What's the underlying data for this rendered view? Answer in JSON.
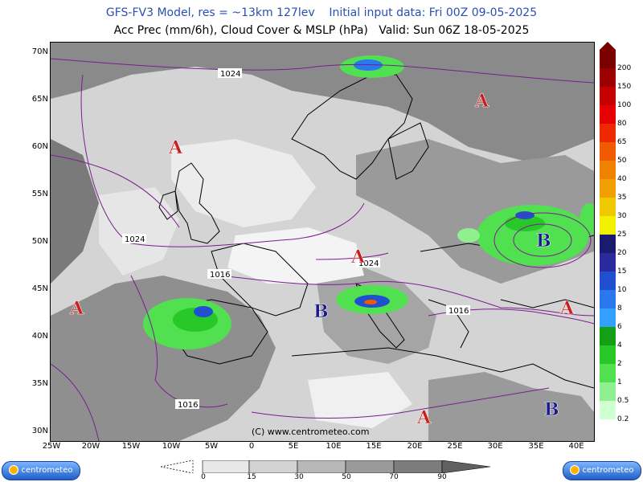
{
  "header": {
    "line1": "GFS-FV3 Model, res = ~13km 127lev    Initial input data: Fri 00Z 09-05-2025",
    "line2": "Acc Prec (mm/6h), Cloud Cover & MSLP (hPa)   Valid: Sun 06Z 18-05-2025"
  },
  "axes": {
    "lat_labels": [
      "70N",
      "65N",
      "60N",
      "55N",
      "50N",
      "45N",
      "40N",
      "35N",
      "30N"
    ],
    "lon_labels": [
      "25W",
      "20W",
      "15W",
      "10W",
      "5W",
      "0",
      "5E",
      "10E",
      "15E",
      "20E",
      "25E",
      "30E",
      "35E",
      "40E"
    ]
  },
  "colorbar": {
    "labels": [
      "200",
      "150",
      "100",
      "80",
      "65",
      "50",
      "40",
      "35",
      "30",
      "25",
      "20",
      "15",
      "10",
      "8",
      "6",
      "4",
      "2",
      "1",
      "0.5",
      "0.2"
    ],
    "colors": [
      "#7a0000",
      "#9c0000",
      "#c40000",
      "#e60000",
      "#f02800",
      "#f05a00",
      "#f08200",
      "#f0a000",
      "#f0c800",
      "#f0f000",
      "#1a1a6e",
      "#2a2a9c",
      "#2050d0",
      "#2a78f0",
      "#32a0ff",
      "#14a014",
      "#28c828",
      "#50e050",
      "#90f090",
      "#d0ffd0"
    ]
  },
  "cloudbar": {
    "labels": [
      "0",
      "15",
      "30",
      "50",
      "70",
      "90"
    ]
  },
  "map": {
    "watermark": "(C)  www.centrometeo.com",
    "isobar_labels": [
      "1024",
      "1024",
      "1024",
      "1016",
      "1016",
      "1016"
    ],
    "centers": [
      "A",
      "A",
      "A",
      "A",
      "A",
      "A",
      "B",
      "B",
      "B"
    ]
  },
  "logos": {
    "left": "centrometeo",
    "right": "centrometeo"
  },
  "colors": {
    "high": "#c81e1e",
    "low": "#1a1a8c",
    "isobar": "#7a1f8c",
    "header_blue": "#2a4fb3"
  }
}
